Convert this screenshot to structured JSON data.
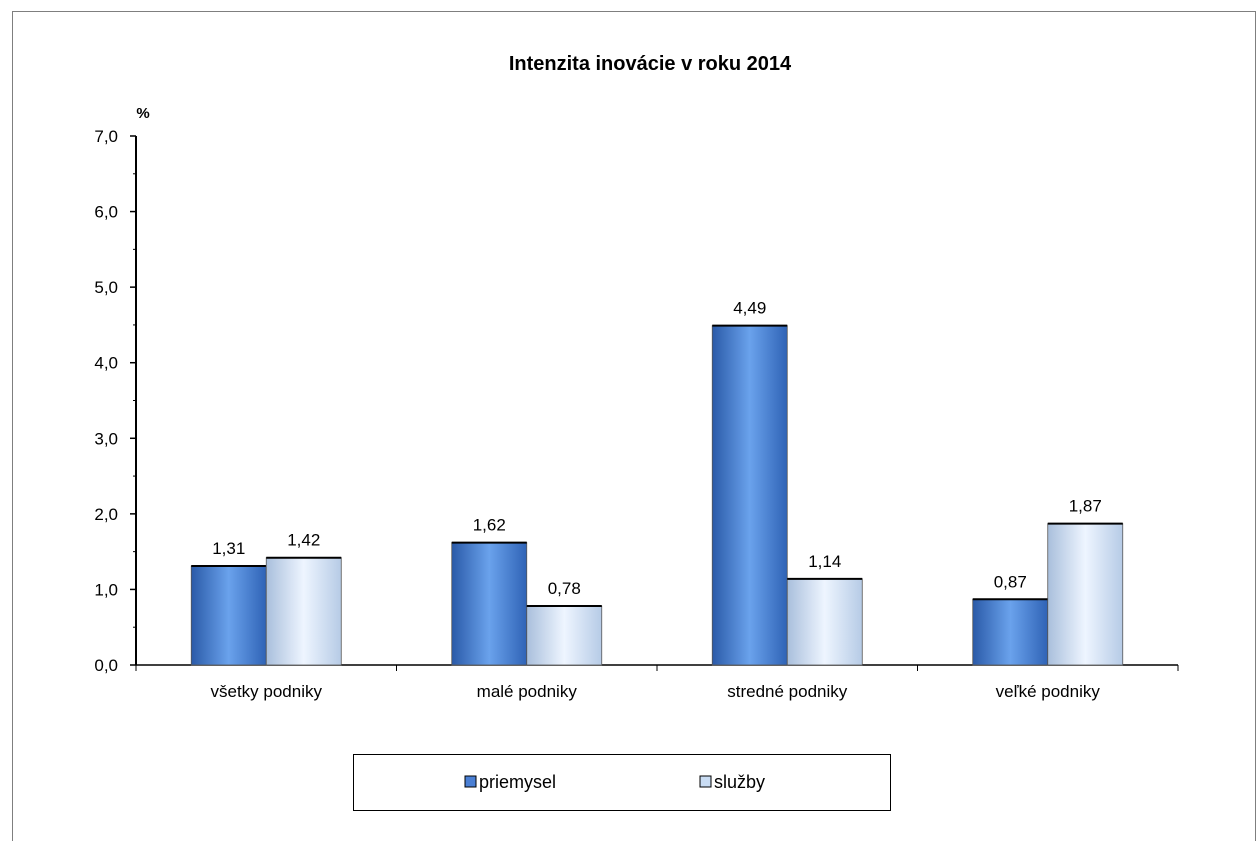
{
  "chart_data": {
    "type": "bar",
    "title": "Intenzita inovácie v roku 2014",
    "ylabel": "%",
    "xlabel": "",
    "categories": [
      "všetky podniky",
      "malé podniky",
      "stredné podniky",
      "veľké podniky"
    ],
    "series": [
      {
        "name": "priemysel",
        "values": [
          1.31,
          1.62,
          4.49,
          0.87
        ],
        "labels": [
          "1,31",
          "1,62",
          "4,49",
          "0,87"
        ],
        "color": "#4a7fd4"
      },
      {
        "name": "služby",
        "values": [
          1.42,
          0.78,
          1.14,
          1.87
        ],
        "labels": [
          "1,42",
          "0,78",
          "1,14",
          "1,87"
        ],
        "color": "#c9dcf3"
      }
    ],
    "ylim": [
      0,
      7
    ],
    "yticks": [
      0,
      1,
      2,
      3,
      4,
      5,
      6,
      7
    ],
    "ytick_labels": [
      "0,0",
      "1,0",
      "2,0",
      "3,0",
      "4,0",
      "5,0",
      "6,0",
      "7,0"
    ],
    "grid": false,
    "legend_position": "bottom"
  }
}
